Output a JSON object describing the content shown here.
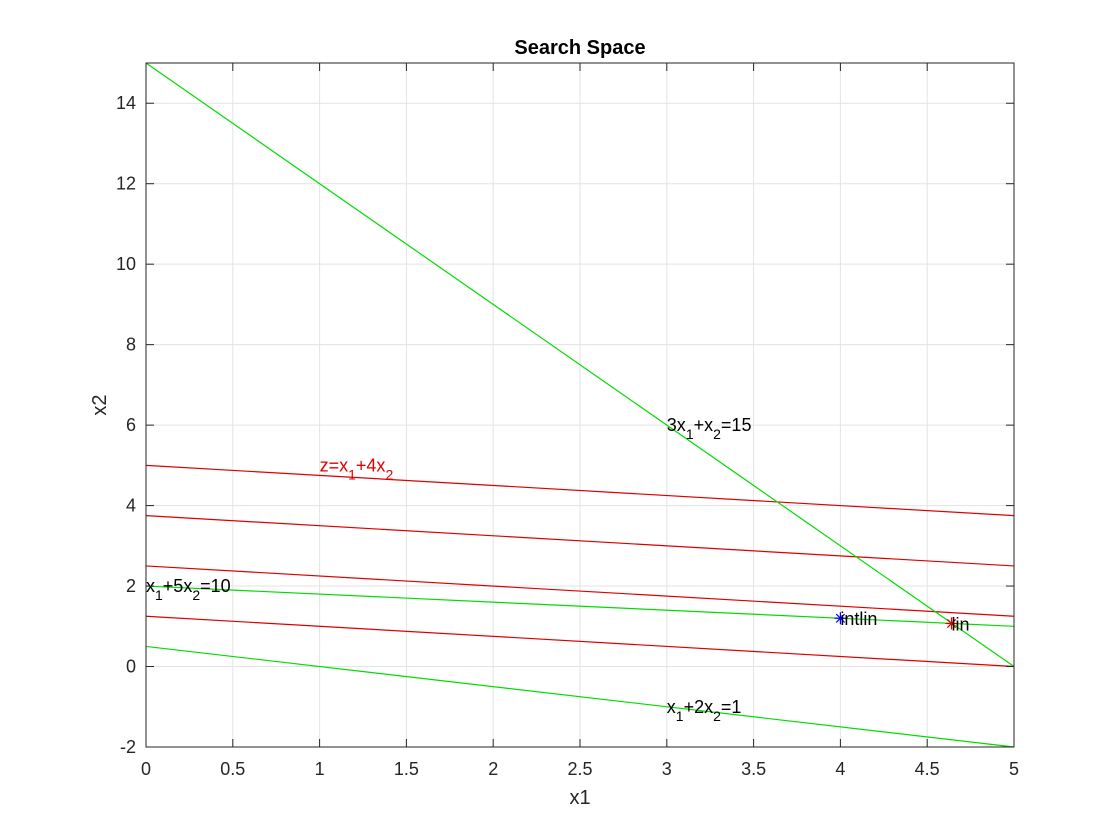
{
  "chart_data": {
    "type": "line",
    "title": "Search Space",
    "xlabel": "x1",
    "ylabel": "x2",
    "xlim": [
      0,
      5
    ],
    "ylim": [
      -2,
      15
    ],
    "xticks": [
      0,
      0.5,
      1,
      1.5,
      2,
      2.5,
      3,
      3.5,
      4,
      4.5,
      5
    ],
    "xtick_labels": [
      "0",
      "0.5",
      "1",
      "1.5",
      "2",
      "2.5",
      "3",
      "3.5",
      "4",
      "4.5",
      "5"
    ],
    "yticks": [
      -2,
      0,
      2,
      4,
      6,
      8,
      10,
      12,
      14
    ],
    "ytick_labels": [
      "-2",
      "0",
      "2",
      "4",
      "6",
      "8",
      "10",
      "12",
      "14"
    ],
    "grid": true,
    "constraint_lines": [
      {
        "color": "#00dd00",
        "x": [
          0,
          5
        ],
        "y": [
          15,
          0
        ]
      },
      {
        "color": "#00dd00",
        "x": [
          0,
          5
        ],
        "y": [
          2,
          1
        ]
      },
      {
        "color": "#00dd00",
        "x": [
          0,
          5
        ],
        "y": [
          0.5,
          -2
        ]
      }
    ],
    "objective_lines": [
      {
        "color": "#dd0000",
        "x": [
          0,
          5
        ],
        "y": [
          5,
          3.75
        ]
      },
      {
        "color": "#dd0000",
        "x": [
          0,
          5
        ],
        "y": [
          3.75,
          2.5
        ]
      },
      {
        "color": "#dd0000",
        "x": [
          0,
          5
        ],
        "y": [
          2.5,
          1.25
        ]
      },
      {
        "color": "#dd0000",
        "x": [
          0,
          5
        ],
        "y": [
          1.25,
          0
        ]
      }
    ],
    "points": [
      {
        "label": "intlin",
        "x": 4,
        "y": 1.2,
        "color": "#0000ff",
        "marker": "*"
      },
      {
        "label": "lin",
        "x": 4.64,
        "y": 1.07,
        "color": "#dd0000",
        "marker": "*"
      }
    ],
    "annotations": [
      {
        "text": "3x",
        "sub1": "1",
        "mid": "+x",
        "sub2": "2",
        "tail": "=15",
        "x": 3.0,
        "y": 6.0,
        "color": "#000000"
      },
      {
        "text": "z=x",
        "sub1": "1",
        "mid": "+4x",
        "sub2": "2",
        "tail": "",
        "x": 1.0,
        "y": 5.0,
        "color": "#dd0000"
      },
      {
        "text": "x",
        "sub1": "1",
        "mid": "+5x",
        "sub2": "2",
        "tail": "=10",
        "x": 0.0,
        "y": 2.0,
        "color": "#000000"
      },
      {
        "text": "x",
        "sub1": "1",
        "mid": "+2x",
        "sub2": "2",
        "tail": "=1",
        "x": 3.0,
        "y": -1.0,
        "color": "#000000"
      }
    ]
  }
}
